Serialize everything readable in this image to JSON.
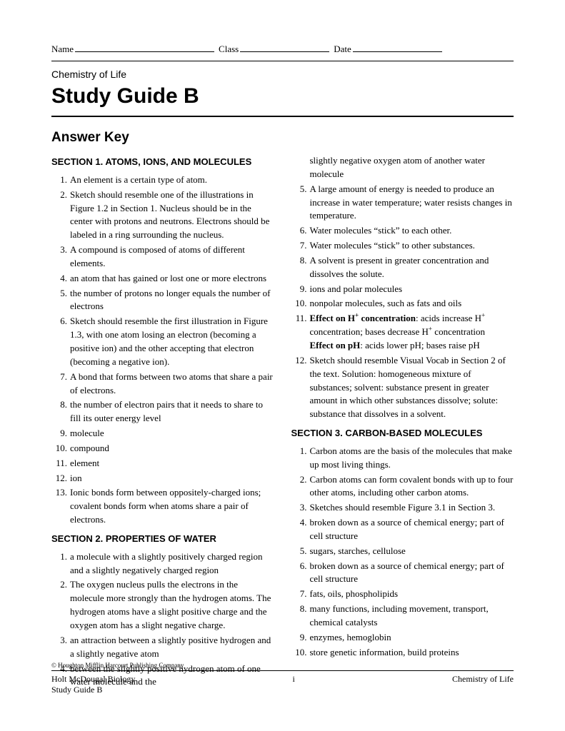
{
  "header": {
    "name_label": "Name",
    "class_label": "Class",
    "date_label": "Date"
  },
  "subject": "Chemistry of Life",
  "title": "Study Guide B",
  "answer_key_heading": "Answer Key",
  "section1": {
    "heading": "SECTION 1. ATOMS, IONS, AND MOLECULES",
    "items": [
      "An element is a certain type of atom.",
      "Sketch should resemble one of the illustrations in Figure 1.2 in Section 1. Nucleus should be in the center with protons and neutrons. Electrons should be labeled in a ring surrounding the nucleus.",
      "A compound is composed of atoms of different elements.",
      "an atom that has gained or lost one or more electrons",
      "the number of protons no longer equals the number of electrons",
      "Sketch should resemble the first illustration in Figure 1.3, with one atom losing an electron (becoming a positive ion) and the other accepting that electron (becoming a negative ion).",
      "A bond that forms between two atoms that share a pair of electrons.",
      "the number of electron pairs that it needs to share to fill its outer energy level",
      "molecule",
      "compound",
      "element",
      "ion",
      "Ionic bonds form between oppositely-charged ions; covalent bonds form when atoms share a pair of electrons."
    ]
  },
  "section2": {
    "heading": "SECTION 2. PROPERTIES OF WATER",
    "left_items": [
      "a molecule with a slightly positively charged region and a slightly negatively charged region",
      "The oxygen nucleus pulls the electrons in the molecule more strongly than the hydrogen atoms. The hydrogen atoms have a slight positive charge and the oxygen atom has a slight negative charge.",
      "an attraction between a slightly positive hydrogen and a slightly negative atom",
      "between the slightly positive hydrogen atom of one water molecule and the"
    ],
    "right_cont": "slightly negative oxygen atom of another water molecule",
    "right_items": {
      "5": "A large amount of energy is needed to produce an increase in water temperature; water resists changes in temperature.",
      "6": "Water molecules “stick” to each other.",
      "7": "Water molecules “stick” to other substances.",
      "8": "A solvent is present in greater concentration and dissolves the solute.",
      "9": "ions and polar molecules",
      "10": "nonpolar molecules, such as fats and oils",
      "11_a_bold": "Effect on H",
      "11_a_sup": "+",
      "11_a_bold2": " concentration",
      "11_a_rest": ": acids increase H",
      "11_a_sup2": "+",
      "11_a_rest2": " concentration; bases decrease H",
      "11_a_sup3": "+",
      "11_a_rest3": " concentration",
      "11_b_bold": "Effect on pH",
      "11_b_rest": ": acids lower pH; bases raise pH",
      "12": "Sketch should resemble Visual Vocab in Section 2 of the text. Solution: homogeneous mixture of substances; solvent: substance present in greater amount in which other substances dissolve; solute: substance that dissolves in a solvent."
    }
  },
  "section3": {
    "heading": "SECTION 3. CARBON-BASED MOLECULES",
    "items": [
      "Carbon atoms are the basis of the molecules that make up most living things.",
      "Carbon atoms can form covalent bonds with up to four other atoms, including other carbon atoms.",
      "Sketches should resemble Figure 3.1 in Section 3.",
      "broken down as a source of chemical energy; part of cell structure",
      "sugars, starches, cellulose",
      "broken down as a source of chemical energy; part of cell structure",
      "fats, oils, phospholipids",
      "many functions, including movement, transport, chemical catalysts",
      "enzymes, hemoglobin",
      "store genetic information, build proteins"
    ]
  },
  "footer": {
    "copyright": "© Houghton Mifflin Harcourt Publishing Company",
    "left1": "Holt McDougal Biology",
    "left2": "Study Guide B",
    "center": "i",
    "right": "Chemistry of Life"
  }
}
